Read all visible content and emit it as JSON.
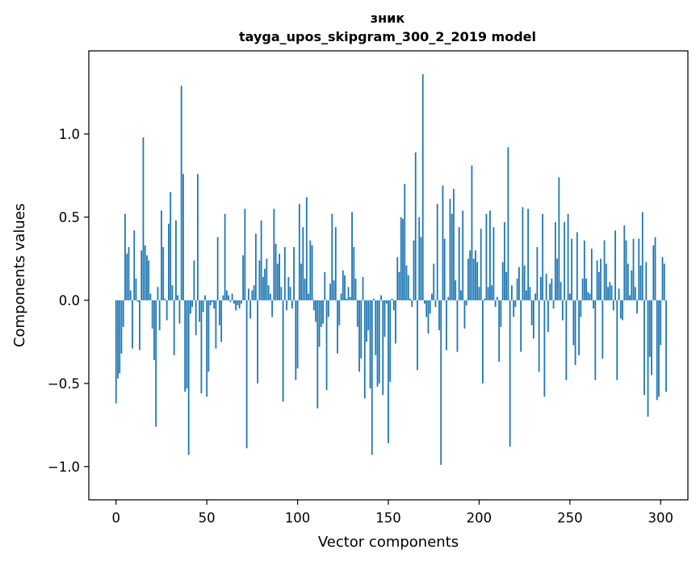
{
  "chart_data": {
    "type": "bar",
    "title": "зник",
    "subtitle": "tayga_upos_skipgram_300_2_2019 model",
    "xlabel": "Vector components",
    "ylabel": "Components values",
    "xlim": [
      -15,
      315
    ],
    "ylim": [
      -1.2,
      1.5
    ],
    "x_ticks": [
      0,
      50,
      100,
      150,
      200,
      250,
      300
    ],
    "x_tick_labels": [
      "0",
      "50",
      "100",
      "150",
      "200",
      "250",
      "300"
    ],
    "y_ticks": [
      -1.0,
      -0.5,
      0.0,
      0.5,
      1.0
    ],
    "y_tick_labels": [
      "−1.0",
      "−0.5",
      "0.0",
      "0.5",
      "1.0"
    ],
    "grid": false,
    "bar_color": "#1f77b4",
    "values": [
      -0.62,
      -0.47,
      -0.44,
      -0.32,
      -0.16,
      0.52,
      0.28,
      0.32,
      0.06,
      -0.29,
      0.42,
      0.13,
      -0.01,
      -0.3,
      0.3,
      0.98,
      0.33,
      0.27,
      0.24,
      0.04,
      -0.17,
      -0.36,
      -0.76,
      0.08,
      -0.18,
      0.54,
      0.32,
      0.01,
      -0.12,
      0.46,
      0.65,
      0.09,
      -0.33,
      0.48,
      0.03,
      -0.14,
      1.29,
      0.76,
      -0.55,
      -0.53,
      -0.93,
      -0.08,
      -0.04,
      0.24,
      -0.21,
      0.76,
      -0.13,
      -0.56,
      -0.07,
      0.03,
      -0.58,
      -0.43,
      -0.03,
      -0.01,
      -0.05,
      -0.29,
      0.38,
      -0.15,
      -0.25,
      0.03,
      0.52,
      0.06,
      0.03,
      -0.01,
      0.04,
      -0.02,
      -0.06,
      -0.03,
      -0.05,
      -0.02,
      0.27,
      0.55,
      -0.89,
      0.07,
      -0.11,
      0.06,
      0.09,
      0.4,
      -0.5,
      0.24,
      0.48,
      0.14,
      0.19,
      0.25,
      0.09,
      0.04,
      -0.1,
      0.55,
      0.34,
      0.22,
      0.28,
      0.08,
      -0.61,
      0.32,
      -0.06,
      0.14,
      0.08,
      -0.05,
      0.32,
      -0.48,
      -0.41,
      0.58,
      0.22,
      0.44,
      0.13,
      0.62,
      0.04,
      0.36,
      0.33,
      -0.06,
      -0.13,
      -0.65,
      -0.28,
      -0.16,
      -0.14,
      0.17,
      -0.54,
      -0.1,
      0.1,
      0.52,
      0.12,
      0.44,
      -0.32,
      -0.15,
      0.04,
      0.18,
      0.15,
      0.01,
      0.08,
      0.02,
      0.53,
      0.32,
      0.13,
      -0.16,
      -0.43,
      -0.35,
      0.14,
      -0.59,
      -0.25,
      -0.18,
      -0.53,
      -0.93,
      0.01,
      -0.33,
      -0.52,
      -0.5,
      0.03,
      -0.57,
      -0.22,
      -0.02,
      -0.86,
      -0.49,
      0.01,
      -0.06,
      -0.26,
      0.26,
      0.17,
      0.5,
      0.49,
      0.7,
      0.21,
      0.15,
      0.01,
      -0.04,
      0.36,
      0.89,
      -0.42,
      0.5,
      0.38,
      1.36,
      -0.02,
      -0.1,
      -0.2,
      -0.08,
      0.04,
      0.22,
      -0.04,
      0.58,
      -0.18,
      -0.99,
      0.69,
      0.37,
      -0.3,
      0.02,
      0.61,
      0.52,
      0.67,
      0.12,
      -0.31,
      0.44,
      0.06,
      0.54,
      -0.17,
      -0.03,
      0.25,
      0.3,
      0.81,
      0.25,
      0.3,
      0.23,
      0.08,
      0.43,
      -0.5,
      0.01,
      0.52,
      0.08,
      0.54,
      0.09,
      0.44,
      -0.04,
      0.02,
      -0.37,
      -0.16,
      0.23,
      0.47,
      0.17,
      0.92,
      -0.88,
      0.09,
      -0.1,
      -0.04,
      0.13,
      0.2,
      -0.31,
      0.56,
      0.21,
      0.06,
      0.55,
      0.08,
      -0.15,
      -0.23,
      0.04,
      0.32,
      -0.43,
      0.14,
      0.52,
      -0.58,
      0.16,
      -0.19,
      0.1,
      0.13,
      -0.05,
      0.47,
      0.25,
      0.74,
      0.11,
      -0.12,
      0.47,
      -0.48,
      0.52,
      0.04,
      0.37,
      -0.27,
      -0.39,
      0.41,
      -0.33,
      -0.1,
      0.13,
      0.36,
      0.13,
      0.05,
      0.04,
      0.31,
      -0.05,
      -0.48,
      0.24,
      0.17,
      0.25,
      -0.35,
      0.36,
      0.22,
      0.08,
      0.11,
      0.09,
      -0.06,
      0.42,
      -0.48,
      0.07,
      -0.11,
      -0.12,
      0.45,
      0.36,
      0.22,
      0.03,
      0.18,
      0.37,
      0.08,
      -0.08,
      0.37,
      0.21,
      0.53,
      -0.57,
      0.23,
      -0.7,
      -0.34,
      -0.45,
      0.33,
      0.38,
      -0.6,
      -0.58,
      -0.27,
      0.26,
      0.22,
      -0.55
    ]
  }
}
